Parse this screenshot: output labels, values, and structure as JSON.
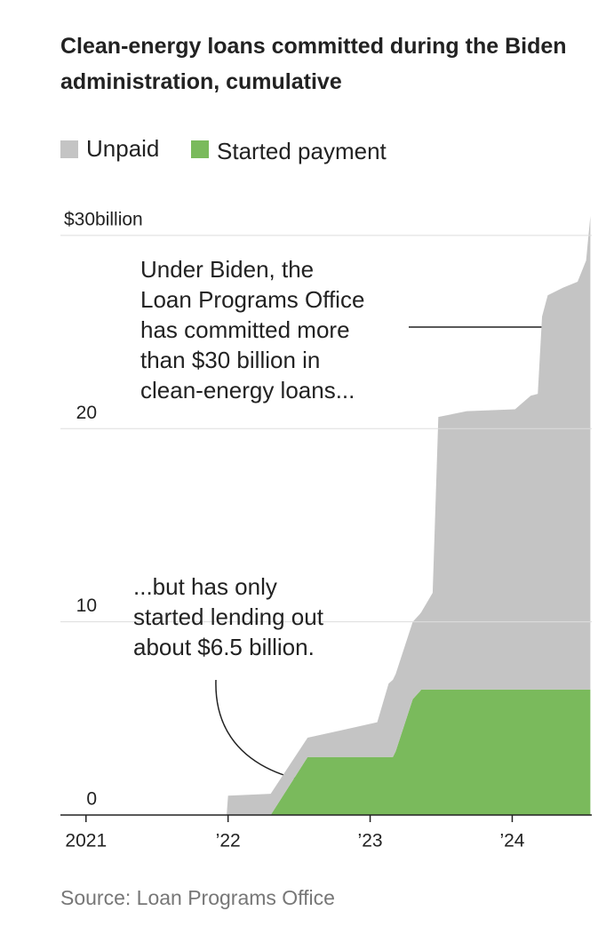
{
  "chart_data": {
    "type": "stacked-area",
    "title": "Clean-energy loans committed during the Biden administration, cumulative",
    "source": "Source: Loan Programs Office",
    "x": [
      2021.99,
      2022.0,
      2022.3,
      2022.56,
      2023.05,
      2023.13,
      2023.16,
      2023.18,
      2023.3,
      2023.35,
      2023.36,
      2023.44,
      2023.48,
      2023.68,
      2024.02,
      2024.13,
      2024.18,
      2024.21,
      2024.25,
      2024.36,
      2024.46,
      2024.52,
      2024.55
    ],
    "series": [
      {
        "name": "Unpaid",
        "color": "#c4c4c4",
        "values": [
          0,
          1.0,
          1.1,
          1.0,
          1.8,
          3.8,
          4.0,
          4.0,
          4.0,
          4.0,
          4.0,
          5.0,
          14.1,
          14.4,
          14.5,
          15.2,
          15.3,
          19.3,
          20.4,
          20.8,
          21.1,
          22.2,
          24.5
        ]
      },
      {
        "name": "Started payment",
        "color": "#7aba5c",
        "values": [
          0,
          0,
          0,
          3.0,
          3.0,
          3.0,
          3.0,
          3.3,
          6.0,
          6.4,
          6.5,
          6.5,
          6.5,
          6.5,
          6.5,
          6.5,
          6.5,
          6.5,
          6.5,
          6.5,
          6.5,
          6.5,
          6.5
        ]
      }
    ],
    "xlim": [
      2020.82,
      2024.56
    ],
    "xticks": [
      {
        "value": 2021,
        "label": "2021"
      },
      {
        "value": 2022,
        "label": "’22"
      },
      {
        "value": 2023,
        "label": "’23"
      },
      {
        "value": 2024,
        "label": "’24"
      }
    ],
    "ylim": [
      0,
      31.05
    ],
    "yticks": [
      0,
      10,
      20,
      {
        "value": 30,
        "label": "$30billion"
      }
    ],
    "grid": true,
    "annotations": [
      {
        "lines": [
          "Under Biden, the",
          "Loan Programs Office",
          "has committed more",
          "than $30 billion in",
          "clean-energy loans..."
        ]
      },
      {
        "lines": [
          "...but has only",
          "started lending out",
          "about $6.5 billion."
        ]
      }
    ]
  }
}
